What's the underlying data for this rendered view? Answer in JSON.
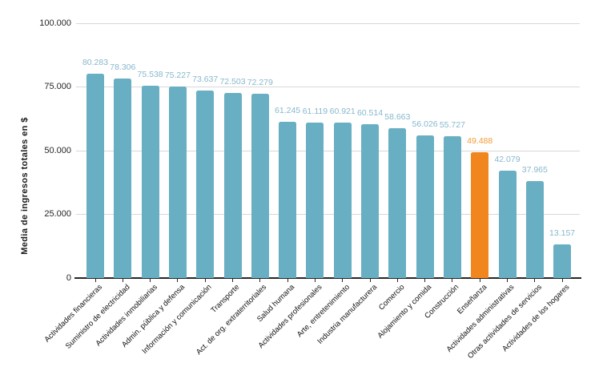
{
  "chart_data": {
    "type": "bar",
    "title": "",
    "xlabel": "",
    "ylabel": "Media de ingresos totales en $",
    "ylim": [
      0,
      100000
    ],
    "yticks": [
      0,
      25000,
      50000,
      75000,
      100000
    ],
    "ytick_labels": [
      "0",
      "25.000",
      "50.000",
      "75.000",
      "100.000"
    ],
    "grid": "horizontal",
    "legend": "none",
    "categories": [
      "Actividades financieras",
      "Suministro de electricidad",
      "Actividades inmobiliarias",
      "Admin. pública y defensa",
      "Información y comunicación",
      "Transporte",
      "Act. de org. extraterritoriales",
      "Salud humana",
      "Actividades profesionales",
      "Arte, entretenimiento",
      "Industria manufacturera",
      "Comercio",
      "Alojamiento y comida",
      "Construcción",
      "Enseñanza",
      "Actividades administrativas",
      "Otras actividades de servicios",
      "Actividades de los hogares"
    ],
    "values": [
      80283,
      78306,
      75538,
      75227,
      73637,
      72503,
      72279,
      61245,
      61119,
      60921,
      60514,
      58663,
      56026,
      55727,
      49488,
      42079,
      37965,
      13157
    ],
    "value_labels": [
      "80.283",
      "78.306",
      "75.538",
      "75.227",
      "73.637",
      "72.503",
      "72.279",
      "61.245",
      "61.119",
      "60.921",
      "60.514",
      "58.663",
      "56.026",
      "55.727",
      "49.488",
      "42.079",
      "37.965",
      "13.157"
    ],
    "highlight_index": 14,
    "highlight_category": "Enseñanza",
    "colors": {
      "bar": "#69afc3",
      "bar_highlight": "#f0861d",
      "value_label": "#87b8cd",
      "value_label_highlight": "#f29a3a",
      "gridline": "#d8d8d8",
      "axis_line": "#262626",
      "tick_text": "#262626",
      "category_text": "#111111"
    }
  }
}
